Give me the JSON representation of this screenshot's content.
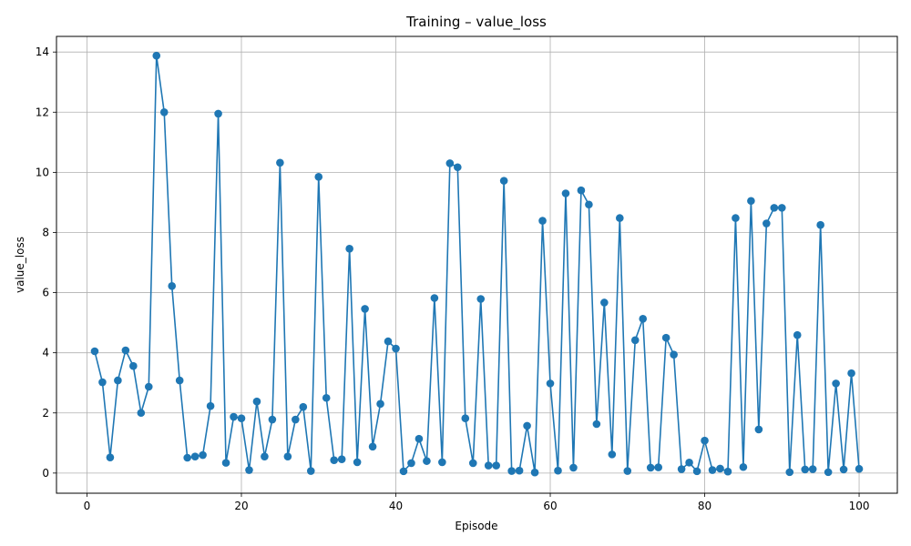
{
  "chart_data": {
    "type": "line",
    "title": "Training – value_loss",
    "xlabel": "Episode",
    "ylabel": "value_loss",
    "xlim": [
      -3.95,
      104.95
    ],
    "ylim": [
      -0.67,
      14.52
    ],
    "xticks": [
      0,
      20,
      40,
      60,
      80,
      100
    ],
    "yticks": [
      0,
      2,
      4,
      6,
      8,
      10,
      12,
      14
    ],
    "xtick_labels": [
      "0",
      "20",
      "40",
      "60",
      "80",
      "100"
    ],
    "ytick_labels": [
      "0",
      "2",
      "4",
      "6",
      "8",
      "10",
      "12",
      "14"
    ],
    "grid": true,
    "legend": "none",
    "color": "#1f77b4",
    "marker": "circle",
    "x": [
      1,
      2,
      3,
      4,
      5,
      6,
      7,
      8,
      9,
      10,
      11,
      12,
      13,
      14,
      15,
      16,
      17,
      18,
      19,
      20,
      21,
      22,
      23,
      24,
      25,
      26,
      27,
      28,
      29,
      30,
      31,
      32,
      33,
      34,
      35,
      36,
      37,
      38,
      39,
      40,
      41,
      42,
      43,
      44,
      45,
      46,
      47,
      48,
      49,
      50,
      51,
      52,
      53,
      54,
      55,
      56,
      57,
      58,
      59,
      60,
      61,
      62,
      63,
      64,
      65,
      66,
      67,
      68,
      69,
      70,
      71,
      72,
      73,
      74,
      75,
      76,
      77,
      78,
      79,
      80,
      81,
      82,
      83,
      84,
      85,
      86,
      87,
      88,
      89,
      90,
      91,
      92,
      93,
      94,
      95,
      96,
      97,
      98,
      99,
      100
    ],
    "y": [
      4.05,
      3.02,
      0.52,
      3.08,
      4.08,
      3.56,
      2.0,
      2.87,
      13.88,
      12.0,
      6.22,
      3.08,
      0.51,
      0.55,
      0.6,
      2.23,
      11.95,
      0.34,
      1.87,
      1.82,
      0.1,
      2.38,
      0.55,
      1.78,
      10.32,
      0.55,
      1.78,
      2.2,
      0.07,
      9.85,
      2.5,
      0.43,
      0.46,
      7.46,
      0.36,
      5.46,
      0.88,
      2.3,
      4.38,
      4.14,
      0.06,
      0.33,
      1.14,
      0.4,
      5.82,
      0.36,
      10.3,
      10.17,
      1.82,
      0.33,
      5.79,
      0.25,
      0.25,
      9.72,
      0.07,
      0.08,
      1.57,
      0.02,
      8.39,
      2.98,
      0.08,
      9.3,
      0.18,
      9.4,
      8.93,
      1.63,
      5.67,
      0.62,
      8.48,
      0.07,
      4.42,
      5.13,
      0.18,
      0.19,
      4.5,
      3.94,
      0.13,
      0.35,
      0.06,
      1.08,
      0.1,
      0.15,
      0.05,
      8.48,
      0.2,
      9.05,
      1.45,
      8.3,
      8.82,
      8.82,
      0.03,
      4.59,
      0.12,
      0.13,
      8.25,
      0.03,
      2.98,
      0.12,
      3.32,
      0.14
    ]
  }
}
